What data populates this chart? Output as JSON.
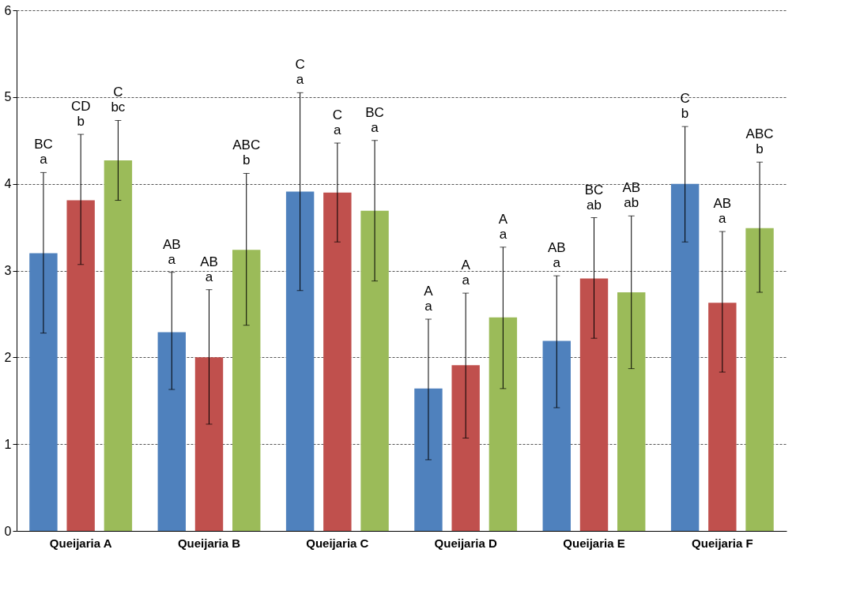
{
  "chart_data": {
    "type": "bar",
    "categories": [
      "Queijaria A",
      "Queijaria B",
      "Queijaria C",
      "Queijaria D",
      "Queijaria E",
      "Queijaria F"
    ],
    "series": [
      {
        "color": "#4f81bd",
        "values": [
          3.2,
          2.29,
          3.91,
          1.64,
          2.19,
          4.0
        ],
        "errors": [
          [
            2.28,
            4.13
          ],
          [
            1.63,
            2.98
          ],
          [
            2.77,
            5.05
          ],
          [
            0.82,
            2.44
          ],
          [
            1.42,
            2.94
          ],
          [
            3.33,
            4.66
          ]
        ]
      },
      {
        "color": "#c0504d",
        "values": [
          3.81,
          2.0,
          3.9,
          1.91,
          2.91,
          2.63
        ],
        "errors": [
          [
            3.07,
            4.57
          ],
          [
            1.23,
            2.78
          ],
          [
            3.33,
            4.47
          ],
          [
            1.07,
            2.74
          ],
          [
            2.22,
            3.61
          ],
          [
            1.83,
            3.45
          ]
        ]
      },
      {
        "color": "#9bbb59",
        "values": [
          4.27,
          3.24,
          3.69,
          2.46,
          2.75,
          3.49
        ],
        "errors": [
          [
            3.81,
            4.73
          ],
          [
            2.37,
            4.12
          ],
          [
            2.88,
            4.5
          ],
          [
            1.64,
            3.27
          ],
          [
            1.87,
            3.63
          ],
          [
            2.75,
            4.25
          ]
        ]
      }
    ],
    "annotations": [
      "BC\na",
      "CD\nb",
      "C\nbc",
      "AB\na",
      "AB\na",
      "ABC\nb",
      "C\na",
      "C\na",
      "BC\na",
      "A\na",
      "A\na",
      "A\na",
      "AB\na",
      "BC\nab",
      "AB\nab",
      "C\nb",
      "AB\na",
      "ABC\nb"
    ],
    "ylim": [
      0,
      6
    ],
    "yticks": [
      0,
      1,
      2,
      3,
      4,
      5,
      6
    ],
    "grid": "y",
    "legend": false
  }
}
